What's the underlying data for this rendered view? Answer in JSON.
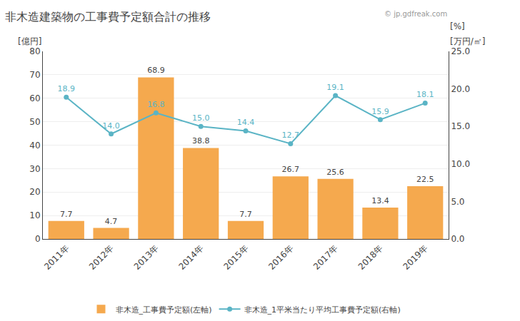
{
  "chart_data": {
    "type": "bar",
    "title": "非木造建築物の工事費予定額合計の推移",
    "categories": [
      "2011年",
      "2012年",
      "2013年",
      "2014年",
      "2015年",
      "2016年",
      "2017年",
      "2018年",
      "2019年"
    ],
    "series": [
      {
        "name": "非木造_工事費予定額(左軸)",
        "type": "bar",
        "color": "#f5a94e",
        "values": [
          7.7,
          4.7,
          68.9,
          38.8,
          7.7,
          26.7,
          25.6,
          13.4,
          22.5
        ]
      },
      {
        "name": "非木造_1平米当たり平均工事費予定額(右軸)",
        "type": "line",
        "axis": "y2",
        "color": "#5ab4c5",
        "marker": "circle",
        "values": [
          18.9,
          14.0,
          16.8,
          15.0,
          14.4,
          12.7,
          19.1,
          15.9,
          18.1
        ],
        "value_labels": [
          "18.9",
          "14.0",
          "16.8",
          "15.0",
          "14.4",
          "12.7",
          "19.1",
          "15.9",
          "18.1"
        ]
      }
    ],
    "ylabel": "[億円]",
    "y2label": "[万円/㎡]",
    "annotations": [
      "[%]",
      "© jp.gdfreak.com"
    ],
    "ylim": [
      0,
      80
    ],
    "yticks": [
      0,
      10,
      20,
      30,
      40,
      50,
      60,
      70,
      80
    ],
    "y2lim": [
      0,
      25.0
    ],
    "y2ticks": [
      {
        "value": 0.0,
        "label": "0.0"
      },
      {
        "value": 5.0,
        "label": "5.0"
      },
      {
        "value": 10.0,
        "label": "10.0"
      },
      {
        "value": 15.0,
        "label": "15.0"
      },
      {
        "value": 20.0,
        "label": "20.0"
      },
      {
        "value": 25.0,
        "label": "25.0"
      }
    ],
    "grid": true,
    "legend": "bottom",
    "data_labels": true
  }
}
